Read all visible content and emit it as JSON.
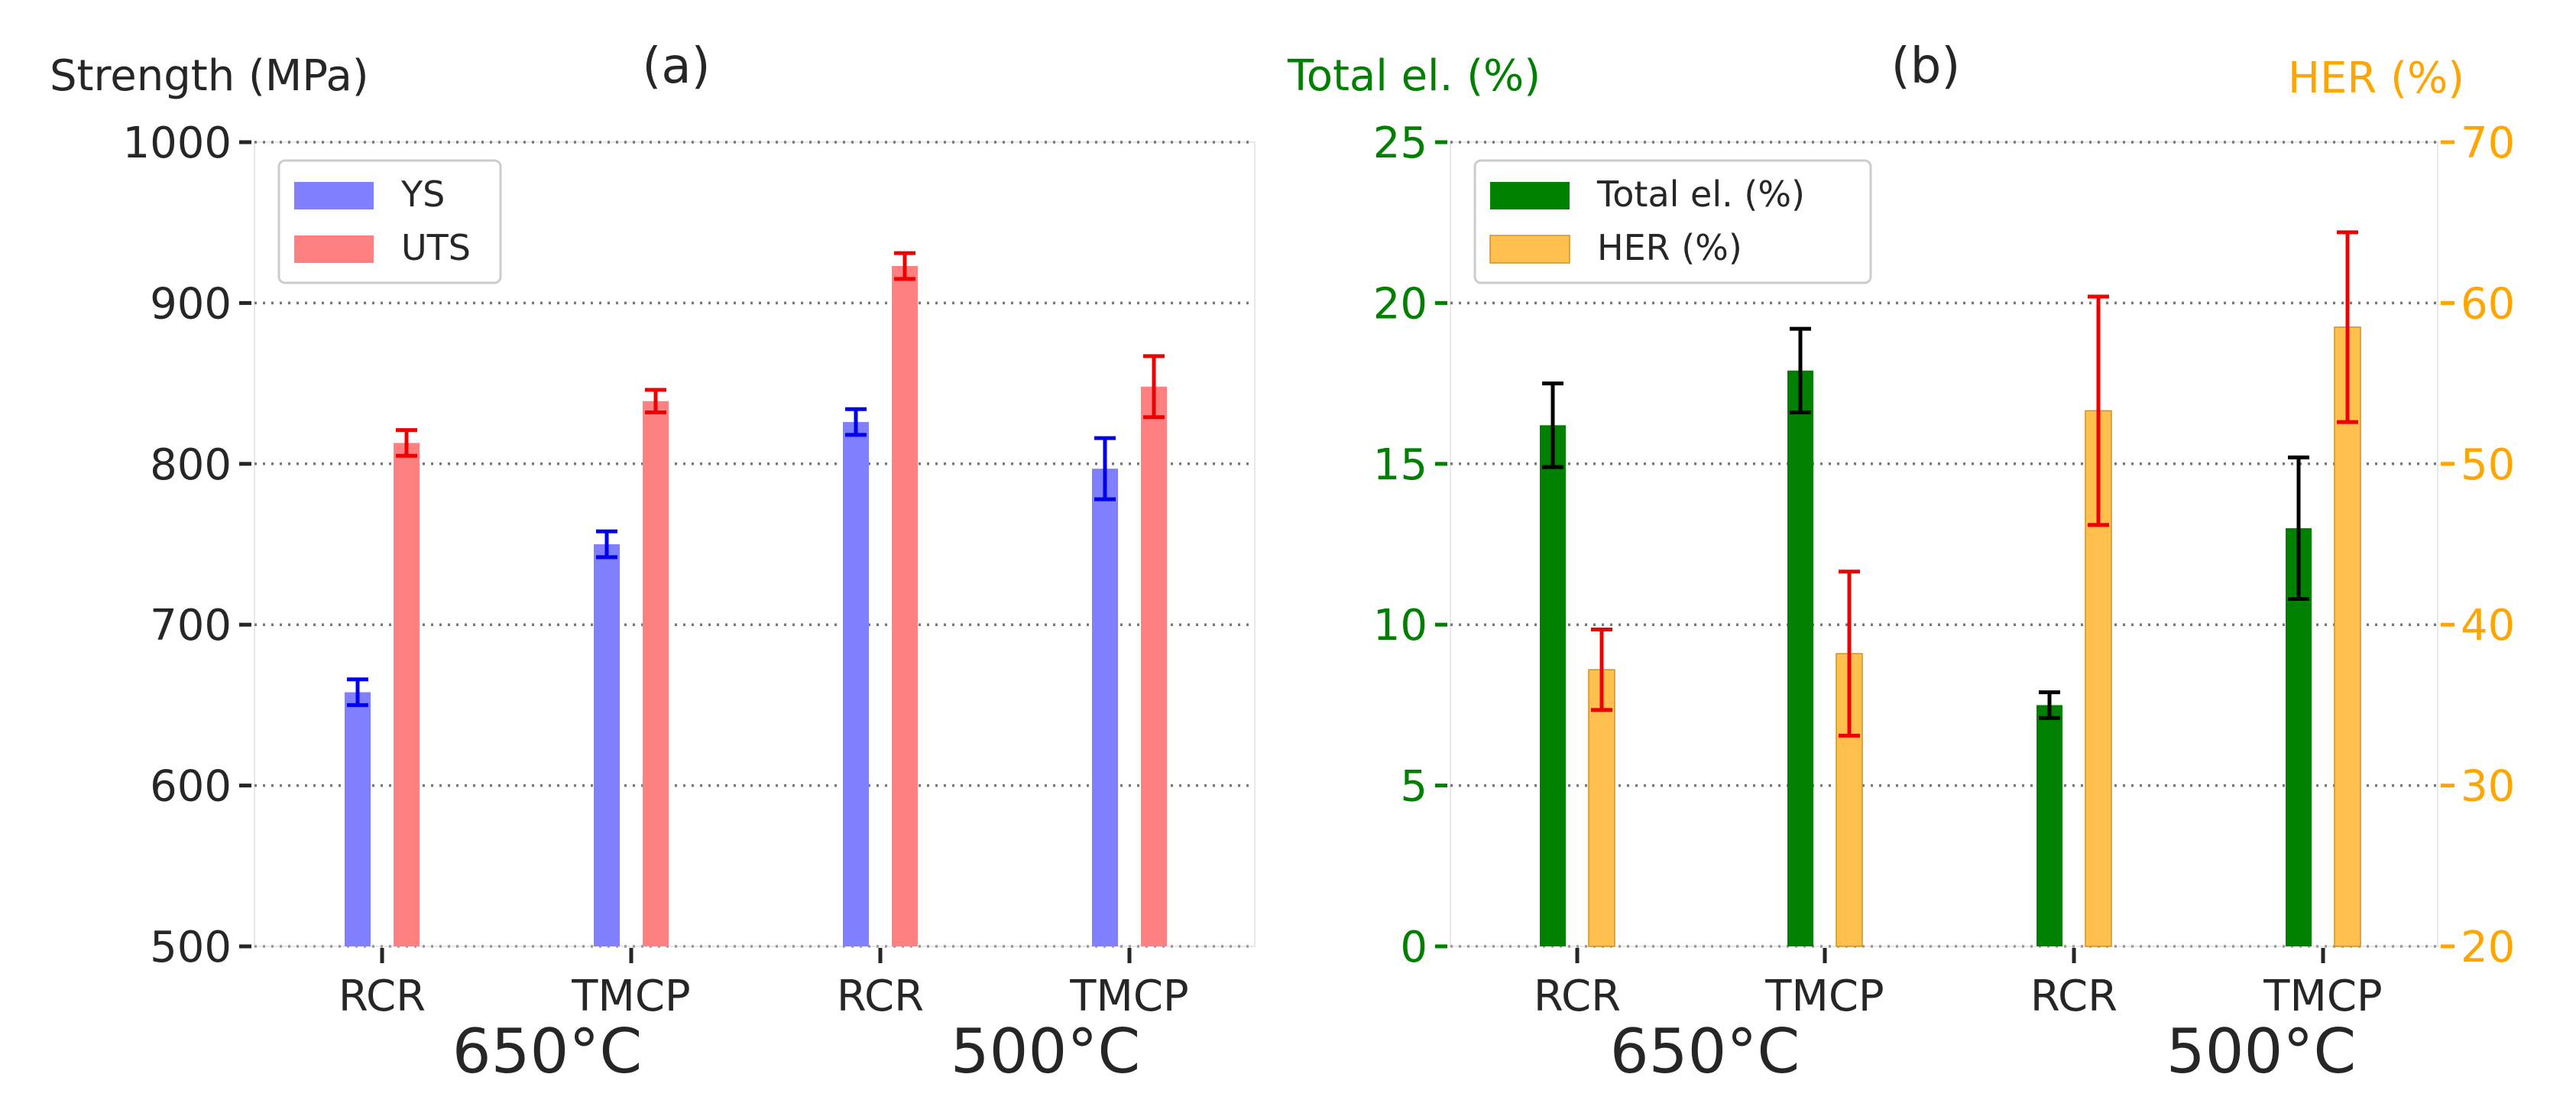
{
  "chart_data": [
    {
      "type": "bar",
      "panel_label": "(a)",
      "ylabel": "Strength (MPa)",
      "ylim": [
        500,
        1000
      ],
      "yticks": [
        500,
        600,
        700,
        800,
        900,
        1000
      ],
      "grid": "horizontal dotted",
      "categories": [
        "RCR",
        "TMCP",
        "RCR",
        "TMCP"
      ],
      "groups": [
        {
          "label": "650°C",
          "categories": [
            "RCR",
            "TMCP"
          ]
        },
        {
          "label": "500°C",
          "categories": [
            "RCR",
            "TMCP"
          ]
        }
      ],
      "legend_position": "top-left",
      "series": [
        {
          "name": "YS",
          "color": "#8080ff",
          "error_color": "#0000ee",
          "values": [
            658,
            750,
            826,
            797
          ],
          "errors": [
            8,
            8,
            8,
            19
          ]
        },
        {
          "name": "UTS",
          "color": "#ff8080",
          "error_color": "#ee0000",
          "values": [
            813,
            839,
            923,
            848
          ],
          "errors": [
            8,
            7,
            8,
            19
          ]
        }
      ]
    },
    {
      "type": "bar",
      "panel_label": "(b)",
      "ylabel_left": "Total el. (%)",
      "ylabel_right": "HER (%)",
      "ylim_left": [
        0,
        25
      ],
      "yticks_left": [
        0,
        5,
        10,
        15,
        20,
        25
      ],
      "ylim_right": [
        20,
        70
      ],
      "yticks_right": [
        20,
        30,
        40,
        50,
        60,
        70
      ],
      "left_axis_color": "#008000",
      "right_axis_color": "#ffa500",
      "grid": "horizontal dotted",
      "categories": [
        "RCR",
        "TMCP",
        "RCR",
        "TMCP"
      ],
      "groups": [
        {
          "label": "650°C",
          "categories": [
            "RCR",
            "TMCP"
          ]
        },
        {
          "label": "500°C",
          "categories": [
            "RCR",
            "TMCP"
          ]
        }
      ],
      "legend_position": "top-left",
      "series": [
        {
          "name": "Total el. (%)",
          "axis": "left",
          "color": "#008000",
          "error_color": "#000000",
          "values": [
            16.2,
            17.9,
            7.5,
            13.0
          ],
          "errors": [
            1.3,
            1.3,
            0.4,
            2.2
          ]
        },
        {
          "name": "HER (%)",
          "axis": "right",
          "color": "#ffc04d",
          "error_color": "#ee0000",
          "values": [
            37.2,
            38.2,
            53.3,
            58.5
          ],
          "errors": [
            2.5,
            5.1,
            7.1,
            5.9
          ]
        }
      ]
    }
  ]
}
